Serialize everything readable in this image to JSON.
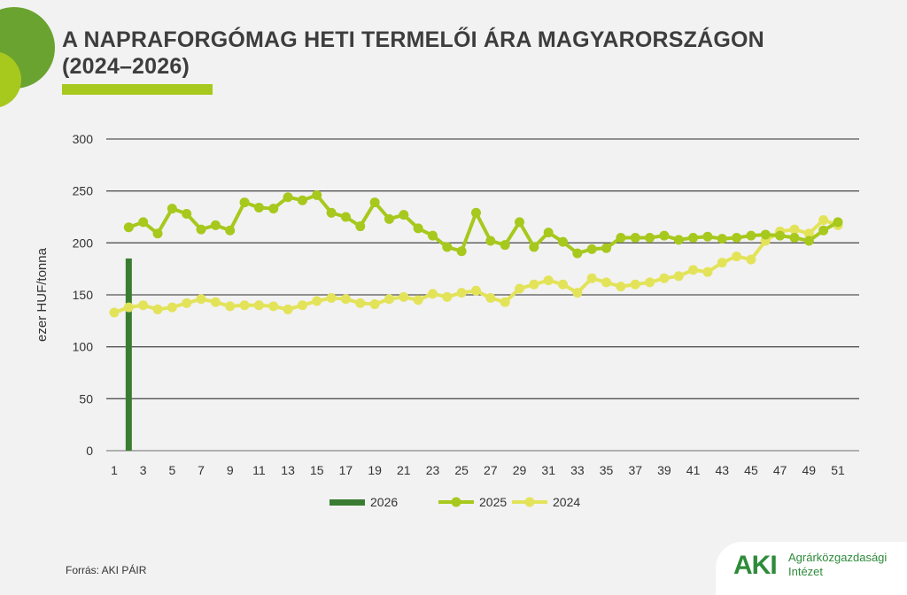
{
  "title_line1": "A NAPRAFORGÓMAG HETI TERMELŐI ÁRA MAGYARORSZÁGON",
  "title_line2": "(2024–2026)",
  "source": "Forrás: AKI PÁIR",
  "logo": {
    "abbr": "AKI",
    "line1": "Agrárközgazdasági",
    "line2": "Intézet"
  },
  "chart_data": {
    "type": "line",
    "ylabel": "ezer HUF/tonna",
    "ylim": [
      0,
      300
    ],
    "yticks": [
      0,
      50,
      100,
      150,
      200,
      250,
      300
    ],
    "xlim": [
      1,
      51
    ],
    "xticks": [
      1,
      3,
      5,
      7,
      9,
      11,
      13,
      15,
      17,
      19,
      21,
      23,
      25,
      27,
      29,
      31,
      33,
      35,
      37,
      39,
      41,
      43,
      45,
      47,
      49,
      51
    ],
    "grid": true,
    "legend": "bottom",
    "series": [
      {
        "name": "2026",
        "kind": "bar",
        "color": "#3a7d32",
        "x": [
          2
        ],
        "values": [
          185
        ]
      },
      {
        "name": "2025",
        "kind": "line",
        "color": "#a7c81d",
        "x_start": 2,
        "values": [
          215,
          220,
          209,
          233,
          228,
          213,
          217,
          212,
          239,
          234,
          233,
          244,
          241,
          246,
          229,
          225,
          216,
          239,
          223,
          227,
          214,
          207,
          196,
          192,
          229,
          202,
          198,
          220,
          196,
          210,
          201,
          190,
          194,
          195,
          205,
          205,
          205,
          207,
          203,
          205,
          206,
          204,
          205,
          207,
          208,
          207,
          205,
          202,
          212,
          220
        ]
      },
      {
        "name": "2024",
        "kind": "line",
        "color": "#e3e35a",
        "x_start": 1,
        "values": [
          133,
          138,
          140,
          136,
          138,
          142,
          146,
          143,
          139,
          140,
          140,
          139,
          136,
          140,
          144,
          147,
          146,
          142,
          141,
          146,
          148,
          145,
          151,
          148,
          152,
          154,
          147,
          143,
          156,
          160,
          164,
          160,
          152,
          166,
          162,
          158,
          160,
          162,
          166,
          168,
          174,
          172,
          181,
          187,
          184,
          202,
          211,
          213,
          209,
          222,
          217
        ]
      }
    ]
  }
}
